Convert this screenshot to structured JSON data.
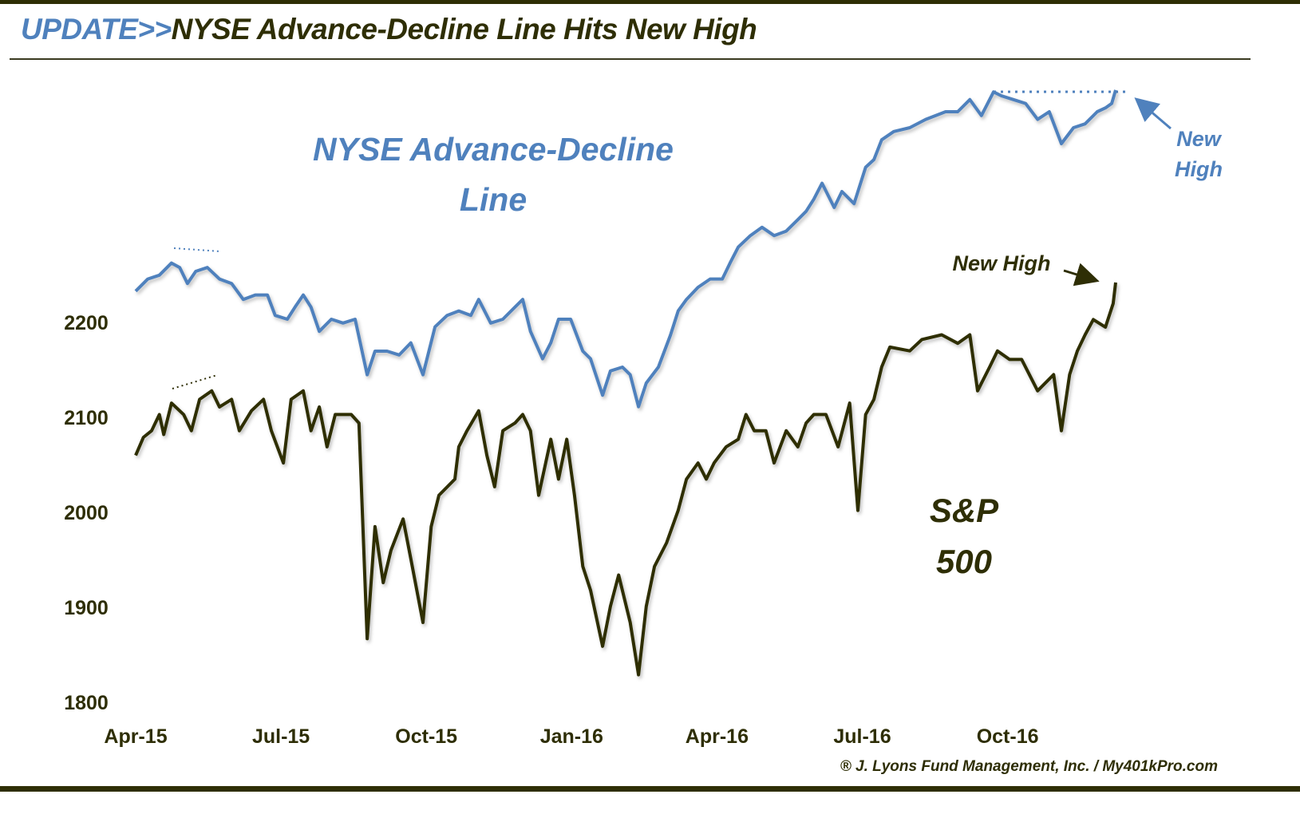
{
  "title": {
    "prefix": "UPDATE>>",
    "main": "NYSE Advance-Decline Line Hits New High"
  },
  "footer": "® J. Lyons Fund Management, Inc. / My401kPro.com",
  "colors": {
    "ad_line": "#4f81bd",
    "sp500": "#2e2e05",
    "frame": "#2e2e05"
  },
  "chart_data": {
    "type": "line",
    "title": "UPDATE>>NYSE Advance-Decline Line Hits New High",
    "xlabel": "",
    "ylabel": "",
    "x_units": "months since Apr-15",
    "xlim": [
      0,
      20.3
    ],
    "x_ticks": [
      {
        "x": 0,
        "label": "Apr-15"
      },
      {
        "x": 3,
        "label": "Jul-15"
      },
      {
        "x": 6,
        "label": "Oct-15"
      },
      {
        "x": 9,
        "label": "Jan-16"
      },
      {
        "x": 12,
        "label": "Apr-16"
      },
      {
        "x": 15,
        "label": "Jul-16"
      },
      {
        "x": 18,
        "label": "Oct-16"
      }
    ],
    "ylim": [
      1800,
      2200
    ],
    "y_ticks": [
      "2200",
      "2100",
      "2000",
      "1900",
      "1800"
    ],
    "grid": false,
    "annotations": {
      "ad_label_1": "NYSE Advance-Decline",
      "ad_label_2": "Line",
      "sp_label_1": "S&P",
      "sp_label_2": "500",
      "ad_new_high_1": "New",
      "ad_new_high_2": "High",
      "sp_new_high": "New High"
    },
    "series": [
      {
        "name": "NYSE Advance-Decline Line",
        "axis": "relative (0-100, unlabeled)",
        "ylim": [
          0,
          100
        ],
        "points": [
          [
            0,
            66.9
          ],
          [
            0.25,
            68.8
          ],
          [
            0.49,
            69.4
          ],
          [
            0.74,
            71.3
          ],
          [
            0.91,
            70.6
          ],
          [
            1.07,
            68.1
          ],
          [
            1.24,
            70
          ],
          [
            1.48,
            70.6
          ],
          [
            1.73,
            68.8
          ],
          [
            1.98,
            68.1
          ],
          [
            2.22,
            65.6
          ],
          [
            2.47,
            66.3
          ],
          [
            2.72,
            66.3
          ],
          [
            2.88,
            63.1
          ],
          [
            3.13,
            62.5
          ],
          [
            3.29,
            64.4
          ],
          [
            3.46,
            66.3
          ],
          [
            3.62,
            64.4
          ],
          [
            3.79,
            60.6
          ],
          [
            4.04,
            62.5
          ],
          [
            4.28,
            61.9
          ],
          [
            4.53,
            62.5
          ],
          [
            4.78,
            53.8
          ],
          [
            4.94,
            57.5
          ],
          [
            5.19,
            57.5
          ],
          [
            5.44,
            56.9
          ],
          [
            5.68,
            58.8
          ],
          [
            5.93,
            53.8
          ],
          [
            6.18,
            61.3
          ],
          [
            6.43,
            63.1
          ],
          [
            6.67,
            63.8
          ],
          [
            6.92,
            63.1
          ],
          [
            7.08,
            65.6
          ],
          [
            7.33,
            61.9
          ],
          [
            7.58,
            62.5
          ],
          [
            7.83,
            64.4
          ],
          [
            7.99,
            65.6
          ],
          [
            8.15,
            60.6
          ],
          [
            8.4,
            56.3
          ],
          [
            8.57,
            58.8
          ],
          [
            8.73,
            62.5
          ],
          [
            8.98,
            62.5
          ],
          [
            9.23,
            57.5
          ],
          [
            9.39,
            56.3
          ],
          [
            9.64,
            50.6
          ],
          [
            9.8,
            54.4
          ],
          [
            10.05,
            55
          ],
          [
            10.21,
            53.8
          ],
          [
            10.38,
            48.8
          ],
          [
            10.54,
            52.5
          ],
          [
            10.79,
            55
          ],
          [
            11.04,
            60
          ],
          [
            11.2,
            63.8
          ],
          [
            11.37,
            65.6
          ],
          [
            11.61,
            67.5
          ],
          [
            11.86,
            68.8
          ],
          [
            12.11,
            68.8
          ],
          [
            12.27,
            71.3
          ],
          [
            12.44,
            73.8
          ],
          [
            12.69,
            75.6
          ],
          [
            12.93,
            76.9
          ],
          [
            13.18,
            75.6
          ],
          [
            13.43,
            76.3
          ],
          [
            13.67,
            78.1
          ],
          [
            13.84,
            79.4
          ],
          [
            14,
            81.3
          ],
          [
            14.17,
            83.8
          ],
          [
            14.42,
            80
          ],
          [
            14.58,
            82.5
          ],
          [
            14.83,
            80.6
          ],
          [
            15.07,
            86.3
          ],
          [
            15.24,
            87.5
          ],
          [
            15.4,
            90.6
          ],
          [
            15.65,
            91.9
          ],
          [
            15.98,
            92.5
          ],
          [
            16.31,
            93.8
          ],
          [
            16.72,
            95
          ],
          [
            16.97,
            95
          ],
          [
            17.22,
            96.9
          ],
          [
            17.46,
            94.4
          ],
          [
            17.71,
            98.1
          ],
          [
            17.87,
            97.5
          ],
          [
            18.12,
            96.9
          ],
          [
            18.37,
            96.3
          ],
          [
            18.62,
            93.8
          ],
          [
            18.86,
            95
          ],
          [
            19.11,
            90
          ],
          [
            19.36,
            92.5
          ],
          [
            19.6,
            93.1
          ],
          [
            19.85,
            95
          ],
          [
            20.02,
            95.6
          ],
          [
            20.15,
            96.3
          ],
          [
            20.23,
            98.4
          ]
        ]
      },
      {
        "name": "S&P 500",
        "axis": "left",
        "points": [
          [
            0,
            2060
          ],
          [
            0.16,
            2079
          ],
          [
            0.33,
            2086
          ],
          [
            0.49,
            2103
          ],
          [
            0.58,
            2082
          ],
          [
            0.74,
            2115
          ],
          [
            0.99,
            2103
          ],
          [
            1.15,
            2086
          ],
          [
            1.32,
            2119
          ],
          [
            1.57,
            2128
          ],
          [
            1.73,
            2111
          ],
          [
            1.98,
            2119
          ],
          [
            2.14,
            2086
          ],
          [
            2.39,
            2107
          ],
          [
            2.64,
            2119
          ],
          [
            2.8,
            2086
          ],
          [
            3.05,
            2052
          ],
          [
            3.21,
            2119
          ],
          [
            3.46,
            2128
          ],
          [
            3.62,
            2086
          ],
          [
            3.79,
            2111
          ],
          [
            3.95,
            2069
          ],
          [
            4.12,
            2103
          ],
          [
            4.45,
            2103
          ],
          [
            4.61,
            2094
          ],
          [
            4.78,
            1867
          ],
          [
            4.94,
            1985
          ],
          [
            5.11,
            1926
          ],
          [
            5.27,
            1960
          ],
          [
            5.52,
            1993
          ],
          [
            5.68,
            1951
          ],
          [
            5.93,
            1884
          ],
          [
            6.1,
            1985
          ],
          [
            6.26,
            2018
          ],
          [
            6.59,
            2035
          ],
          [
            6.67,
            2069
          ],
          [
            6.84,
            2086
          ],
          [
            7.08,
            2107
          ],
          [
            7.25,
            2060
          ],
          [
            7.41,
            2027
          ],
          [
            7.58,
            2086
          ],
          [
            7.83,
            2094
          ],
          [
            7.99,
            2103
          ],
          [
            8.15,
            2086
          ],
          [
            8.32,
            2018
          ],
          [
            8.57,
            2077
          ],
          [
            8.73,
            2035
          ],
          [
            8.9,
            2077
          ],
          [
            9.06,
            2018
          ],
          [
            9.23,
            1943
          ],
          [
            9.39,
            1918
          ],
          [
            9.64,
            1859
          ],
          [
            9.8,
            1901
          ],
          [
            9.97,
            1934
          ],
          [
            10.21,
            1884
          ],
          [
            10.38,
            1829
          ],
          [
            10.54,
            1901
          ],
          [
            10.71,
            1943
          ],
          [
            10.96,
            1968
          ],
          [
            11.2,
            2002
          ],
          [
            11.37,
            2035
          ],
          [
            11.61,
            2052
          ],
          [
            11.78,
            2035
          ],
          [
            11.94,
            2052
          ],
          [
            12.19,
            2069
          ],
          [
            12.44,
            2077
          ],
          [
            12.6,
            2103
          ],
          [
            12.77,
            2086
          ],
          [
            13.01,
            2086
          ],
          [
            13.18,
            2052
          ],
          [
            13.43,
            2086
          ],
          [
            13.67,
            2069
          ],
          [
            13.84,
            2094
          ],
          [
            14,
            2103
          ],
          [
            14.25,
            2103
          ],
          [
            14.5,
            2069
          ],
          [
            14.74,
            2115
          ],
          [
            14.91,
            2002
          ],
          [
            15.07,
            2103
          ],
          [
            15.24,
            2119
          ],
          [
            15.4,
            2153
          ],
          [
            15.57,
            2174
          ],
          [
            15.98,
            2170
          ],
          [
            16.23,
            2182
          ],
          [
            16.64,
            2187
          ],
          [
            16.97,
            2178
          ],
          [
            17.22,
            2187
          ],
          [
            17.38,
            2128
          ],
          [
            17.63,
            2153
          ],
          [
            17.79,
            2170
          ],
          [
            18.04,
            2161
          ],
          [
            18.29,
            2161
          ],
          [
            18.62,
            2128
          ],
          [
            18.95,
            2145
          ],
          [
            19.11,
            2086
          ],
          [
            19.28,
            2145
          ],
          [
            19.44,
            2170
          ],
          [
            19.6,
            2187
          ],
          [
            19.77,
            2203
          ],
          [
            20.02,
            2195
          ],
          [
            20.18,
            2220
          ],
          [
            20.23,
            2242
          ]
        ]
      }
    ]
  }
}
